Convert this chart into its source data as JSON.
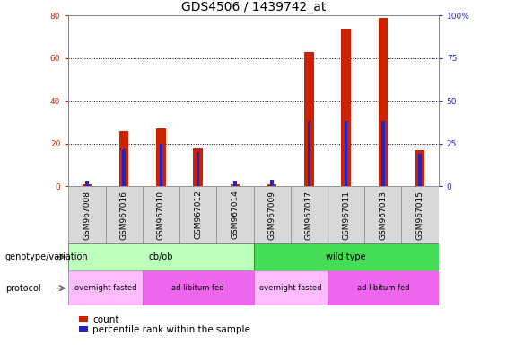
{
  "title": "GDS4506 / 1439742_at",
  "samples": [
    "GSM967008",
    "GSM967016",
    "GSM967010",
    "GSM967012",
    "GSM967014",
    "GSM967009",
    "GSM967017",
    "GSM967011",
    "GSM967013",
    "GSM967015"
  ],
  "count_values": [
    1,
    26,
    27,
    18,
    1,
    1,
    63,
    74,
    79,
    17
  ],
  "percentile_values": [
    3,
    22,
    25,
    20,
    3,
    4,
    38,
    38,
    38,
    19
  ],
  "left_ylim": [
    0,
    80
  ],
  "right_ylim": [
    0,
    100
  ],
  "left_yticks": [
    0,
    20,
    40,
    60,
    80
  ],
  "right_yticks": [
    0,
    25,
    50,
    75,
    100
  ],
  "left_yticklabels": [
    "0",
    "20",
    "40",
    "60",
    "80"
  ],
  "right_yticklabels": [
    "0",
    "25",
    "50",
    "75",
    "100%"
  ],
  "genotype_groups": [
    {
      "label": "ob/ob",
      "start": 0,
      "end": 5,
      "color": "#bbffbb"
    },
    {
      "label": "wild type",
      "start": 5,
      "end": 10,
      "color": "#44dd55"
    }
  ],
  "protocol_groups": [
    {
      "label": "overnight fasted",
      "start": 0,
      "end": 2,
      "color": "#ffbbff"
    },
    {
      "label": "ad libitum fed",
      "start": 2,
      "end": 5,
      "color": "#ee66ee"
    },
    {
      "label": "overnight fasted",
      "start": 5,
      "end": 7,
      "color": "#ffbbff"
    },
    {
      "label": "ad libitum fed",
      "start": 7,
      "end": 10,
      "color": "#ee66ee"
    }
  ],
  "count_color": "#cc2200",
  "percentile_color": "#2222cc",
  "background_color": "#ffffff",
  "title_fontsize": 10,
  "tick_fontsize": 6.5,
  "annot_fontsize": 7,
  "legend_fontsize": 7.5,
  "bar_width": 0.25,
  "percentile_bar_width": 0.08
}
